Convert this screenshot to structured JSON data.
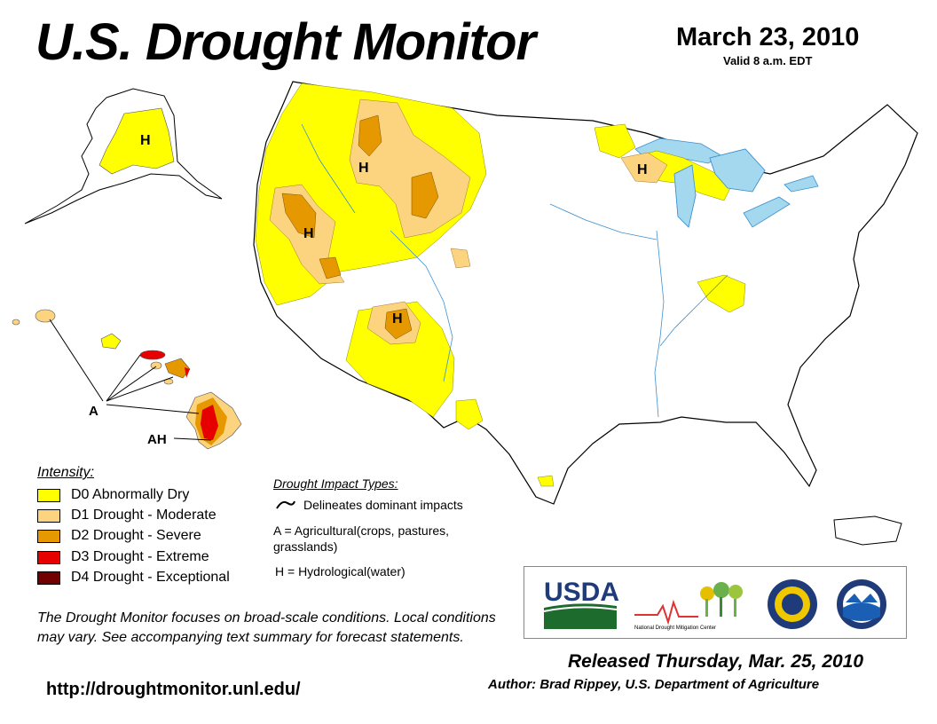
{
  "header": {
    "title": "U.S. Drought Monitor",
    "date": "March 23, 2010",
    "valid": "Valid 8 a.m. EDT"
  },
  "map": {
    "labels": {
      "h_alaska": "H",
      "h_idaho": "H",
      "h_nevada": "H",
      "h_arizona": "H",
      "h_michigan": "H",
      "a_hawaii": "A",
      "ah_hawaii": "AH"
    },
    "colors": {
      "water": "#a4d8ee",
      "d0": "#ffff00",
      "d1": "#fcd37f",
      "d2": "#e69800",
      "d3": "#e60000",
      "d4": "#730000"
    }
  },
  "legend": {
    "title": "Intensity:",
    "items": [
      {
        "label": "D0 Abnormally Dry",
        "color": "#ffff00"
      },
      {
        "label": "D1 Drought - Moderate",
        "color": "#fcd37f"
      },
      {
        "label": "D2 Drought - Severe",
        "color": "#e69800"
      },
      {
        "label": "D3 Drought - Extreme",
        "color": "#e60000"
      },
      {
        "label": "D4 Drought - Exceptional",
        "color": "#730000"
      }
    ]
  },
  "impacts": {
    "title": "Drought Impact Types:",
    "delineates": "Delineates dominant impacts",
    "agricultural": "A = Agricultural(crops, pastures, grasslands)",
    "hydrological": "H = Hydrological(water)"
  },
  "footer": {
    "note": "The Drought Monitor focuses on broad-scale conditions. Local conditions may vary. See accompanying text summary for forecast statements.",
    "url": "http://droughtmonitor.unl.edu/",
    "released": "Released Thursday, Mar. 25, 2010",
    "author": "Author: Brad Rippey, U.S. Department of Agriculture"
  },
  "logos": {
    "usda": "USDA",
    "ndmc": "National Drought Mitigation Center"
  }
}
